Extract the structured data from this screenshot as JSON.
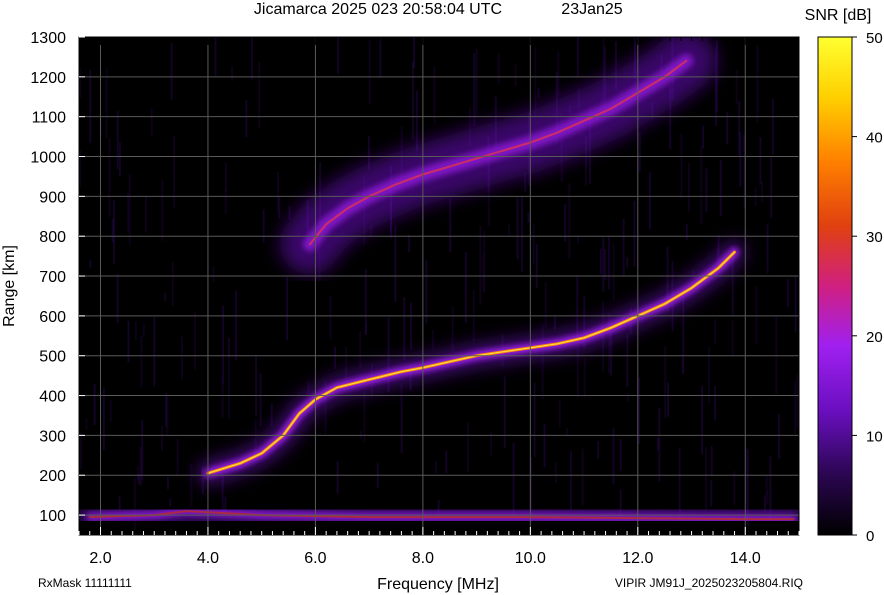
{
  "title": "Jicamarca 2025 023 20:58:04 UTC",
  "date_label": "23Jan25",
  "footer": {
    "rxmask": "RxMask 11111111",
    "filename": "VIPIR  JM91J_2025023205804.RIQ"
  },
  "colors": {
    "background": "#000000",
    "grid": "#5a5a5a",
    "colormap": [
      "#000000",
      "#2a0650",
      "#6a0fc0",
      "#a020f0",
      "#d02080",
      "#e04010",
      "#ff8000",
      "#ffd000",
      "#ffff30"
    ]
  },
  "chart_data": {
    "type": "heatmap",
    "title": "Jicamarca 2025 023 20:58:04 UTC",
    "xlabel": "Frequency [MHz]",
    "ylabel": "Range [km]",
    "xlim": [
      1.6,
      15.0
    ],
    "ylim": [
      50,
      1300
    ],
    "xticks": [
      2.0,
      4.0,
      6.0,
      8.0,
      10.0,
      12.0,
      14.0
    ],
    "xtick_labels": [
      "2.0",
      "4.0",
      "6.0",
      "8.0",
      "10.0",
      "12.0",
      "14.0"
    ],
    "yticks": [
      100,
      200,
      300,
      400,
      500,
      600,
      700,
      800,
      900,
      1000,
      1100,
      1200,
      1300
    ],
    "ytick_labels": [
      "100",
      "200",
      "300",
      "400",
      "500",
      "600",
      "700",
      "800",
      "900",
      "1000",
      "1100",
      "1200",
      "1300"
    ],
    "grid": true,
    "colorbar": {
      "label": "SNR [dB]",
      "range": [
        0,
        50
      ],
      "ticks": [
        0,
        10,
        20,
        30,
        40,
        50
      ],
      "tick_labels": [
        "0",
        "10",
        "20",
        "30",
        "40",
        "50"
      ]
    },
    "traces": [
      {
        "description": "F-region trace (1-hop)",
        "points": [
          [
            4.0,
            205
          ],
          [
            4.6,
            230
          ],
          [
            5.0,
            255
          ],
          [
            5.4,
            300
          ],
          [
            5.7,
            355
          ],
          [
            6.0,
            390
          ],
          [
            6.4,
            420
          ],
          [
            7.0,
            440
          ],
          [
            7.6,
            460
          ],
          [
            8.0,
            470
          ],
          [
            8.5,
            485
          ],
          [
            9.0,
            500
          ],
          [
            9.5,
            510
          ],
          [
            10.0,
            520
          ],
          [
            10.5,
            530
          ],
          [
            11.0,
            545
          ],
          [
            11.5,
            570
          ],
          [
            12.0,
            600
          ],
          [
            12.5,
            630
          ],
          [
            13.0,
            670
          ],
          [
            13.5,
            720
          ],
          [
            13.8,
            760
          ]
        ],
        "peak_snr_db": 45
      },
      {
        "description": "F-region trace (2-hop)",
        "points": [
          [
            5.9,
            780
          ],
          [
            6.2,
            830
          ],
          [
            6.6,
            870
          ],
          [
            7.0,
            900
          ],
          [
            7.5,
            930
          ],
          [
            8.0,
            955
          ],
          [
            8.5,
            975
          ],
          [
            9.0,
            995
          ],
          [
            9.5,
            1015
          ],
          [
            10.0,
            1035
          ],
          [
            10.5,
            1060
          ],
          [
            11.0,
            1090
          ],
          [
            11.5,
            1120
          ],
          [
            12.0,
            1160
          ],
          [
            12.5,
            1200
          ],
          [
            12.9,
            1240
          ]
        ],
        "peak_snr_db": 30
      },
      {
        "description": "Low-altitude band",
        "points": [
          [
            1.8,
            95
          ],
          [
            3.0,
            100
          ],
          [
            3.6,
            110
          ],
          [
            5.0,
            100
          ],
          [
            7.0,
            95
          ],
          [
            10.0,
            95
          ],
          [
            14.0,
            90
          ],
          [
            14.9,
            90
          ]
        ],
        "peak_snr_db": 28
      }
    ]
  }
}
